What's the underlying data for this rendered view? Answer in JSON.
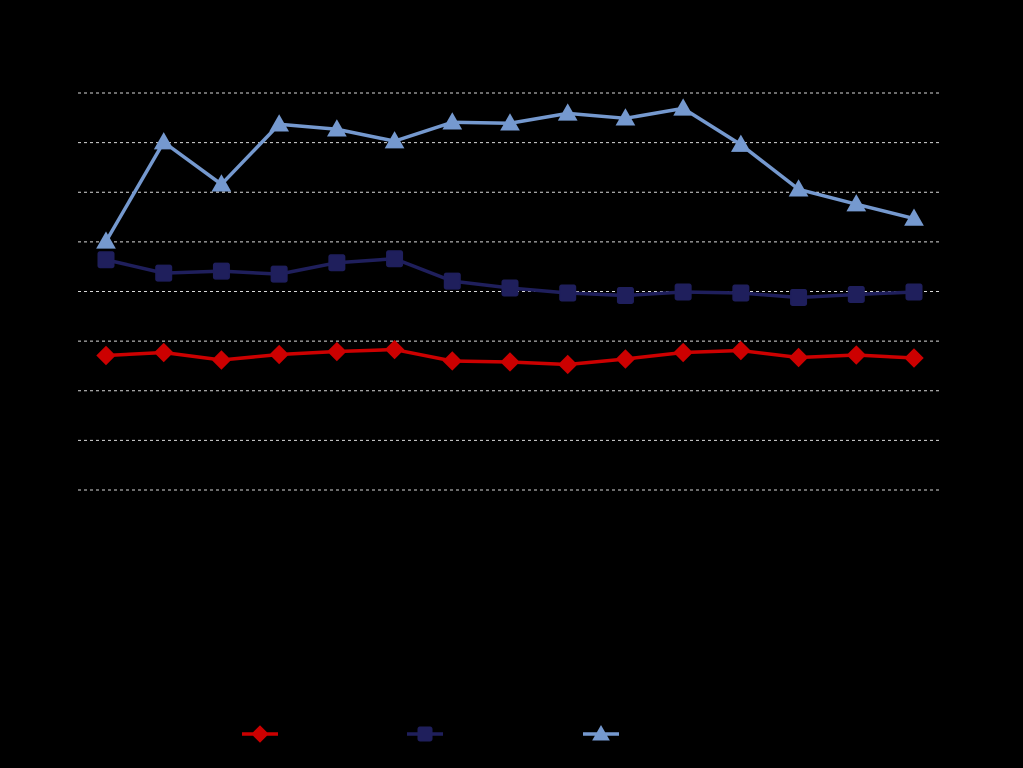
{
  "chart_data": {
    "type": "line",
    "title": "",
    "xlabel": "",
    "ylabel": "",
    "x": [
      1,
      2,
      3,
      4,
      5,
      6,
      7,
      8,
      9,
      10,
      11,
      12,
      13,
      14,
      15
    ],
    "ylim": [
      0,
      8
    ],
    "grid": true,
    "legend_position": "bottom",
    "series": [
      {
        "marker": "diamond",
        "color": "#CC0000",
        "values": [
          2.71,
          2.77,
          2.62,
          2.73,
          2.79,
          2.83,
          2.6,
          2.58,
          2.53,
          2.64,
          2.77,
          2.81,
          2.67,
          2.72,
          2.66
        ]
      },
      {
        "marker": "square",
        "color": "#1F1F5C",
        "values": [
          4.64,
          4.37,
          4.41,
          4.35,
          4.58,
          4.66,
          4.21,
          4.07,
          3.97,
          3.92,
          3.99,
          3.97,
          3.88,
          3.94,
          3.99
        ]
      },
      {
        "marker": "triangle",
        "color": "#7599CF",
        "values": [
          5.01,
          7.01,
          6.16,
          7.37,
          7.27,
          7.03,
          7.41,
          7.39,
          7.59,
          7.49,
          7.69,
          6.96,
          6.06,
          5.76,
          5.47
        ]
      }
    ]
  }
}
